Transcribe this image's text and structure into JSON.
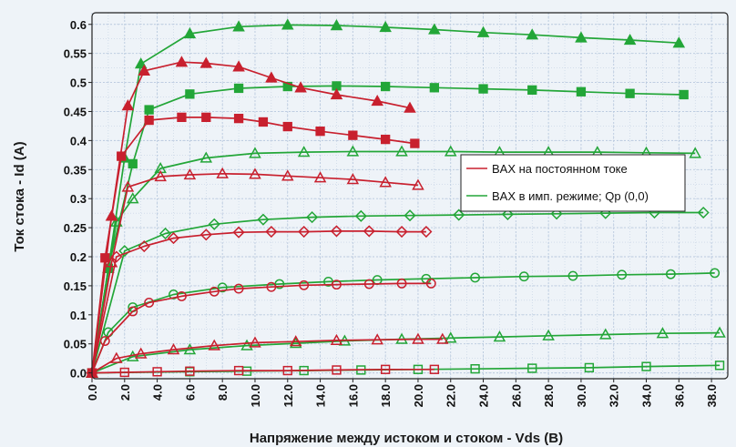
{
  "chart_data": {
    "type": "line",
    "title": "",
    "xlabel": "Напряжение между истоком и стоком - Vds (В)",
    "ylabel": "Ток стока - Id (A)",
    "xlim": [
      0,
      39
    ],
    "ylim": [
      -0.01,
      0.62
    ],
    "x_ticks": [
      "0.0",
      "2.0",
      "4.0",
      "6.0",
      "8.0",
      "10.0",
      "12.0",
      "14.0",
      "16.0",
      "18.0",
      "20.0",
      "22.0",
      "24.0",
      "26.0",
      "28.0",
      "30.0",
      "32.0",
      "34.0",
      "36.0",
      "38.0"
    ],
    "x_tick_values": [
      0,
      2,
      4,
      6,
      8,
      10,
      12,
      14,
      16,
      18,
      20,
      22,
      24,
      26,
      28,
      30,
      32,
      34,
      36,
      38
    ],
    "y_ticks": [
      "0.0",
      "0.05",
      "0.1",
      "0.15",
      "0.2",
      "0.25",
      "0.3",
      "0.35",
      "0.4",
      "0.45",
      "0.5",
      "0.55",
      "0.6"
    ],
    "y_tick_values": [
      0,
      0.05,
      0.1,
      0.15,
      0.2,
      0.25,
      0.3,
      0.35,
      0.4,
      0.45,
      0.5,
      0.55,
      0.6
    ],
    "grid": true,
    "legend_position": "right",
    "legend": [
      {
        "label": "BAX на постоянном токе",
        "color": "#c8202e"
      },
      {
        "label": "BAX в имп. режиме; Qp (0,0)",
        "color": "#23a638"
      }
    ],
    "colors": {
      "dc": "#c8202e",
      "pulsed": "#23a638",
      "background": "#eef3f8",
      "grid": "#b9c9de"
    },
    "series": [
      {
        "group": "dc",
        "marker": "triangle-filled",
        "x": [
          0,
          1.2,
          2.2,
          3.2,
          5.5,
          7,
          9,
          11,
          12.8,
          15,
          17.5,
          19.5
        ],
        "y": [
          0,
          0.27,
          0.46,
          0.52,
          0.535,
          0.533,
          0.527,
          0.508,
          0.491,
          0.479,
          0.468,
          0.456
        ]
      },
      {
        "group": "dc",
        "marker": "square-filled",
        "x": [
          0,
          0.8,
          1.8,
          3.5,
          5.5,
          7,
          9,
          10.5,
          12,
          14,
          16,
          18,
          19.8
        ],
        "y": [
          0,
          0.198,
          0.373,
          0.435,
          0.44,
          0.44,
          0.438,
          0.432,
          0.424,
          0.416,
          0.409,
          0.402,
          0.395
        ]
      },
      {
        "group": "dc",
        "marker": "triangle-open",
        "x": [
          0,
          1.2,
          2.2,
          4.2,
          6,
          8,
          10,
          12,
          14,
          16,
          18,
          20
        ],
        "y": [
          0,
          0.19,
          0.32,
          0.338,
          0.341,
          0.343,
          0.342,
          0.339,
          0.336,
          0.333,
          0.328,
          0.323
        ]
      },
      {
        "group": "dc",
        "marker": "diamond-open",
        "x": [
          0,
          1.5,
          3.2,
          5,
          7,
          9,
          11,
          13,
          15,
          17,
          19,
          20.5
        ],
        "y": [
          0,
          0.2,
          0.218,
          0.232,
          0.238,
          0.242,
          0.243,
          0.243,
          0.244,
          0.244,
          0.243,
          0.243
        ]
      },
      {
        "group": "dc",
        "marker": "circle-open",
        "x": [
          0,
          0.8,
          2.5,
          3.5,
          5.5,
          7.5,
          9,
          11,
          13,
          15,
          17,
          19,
          20.8
        ],
        "y": [
          0,
          0.055,
          0.106,
          0.121,
          0.132,
          0.14,
          0.145,
          0.148,
          0.151,
          0.152,
          0.153,
          0.154,
          0.154
        ]
      },
      {
        "group": "dc",
        "marker": "triangle-open",
        "x": [
          0,
          1.5,
          3,
          5,
          7.5,
          10,
          12.5,
          15,
          17.5,
          20,
          21.5
        ],
        "y": [
          0,
          0.025,
          0.033,
          0.04,
          0.047,
          0.052,
          0.054,
          0.056,
          0.057,
          0.058,
          0.058
        ]
      },
      {
        "group": "dc",
        "marker": "square-open",
        "x": [
          0,
          2,
          4,
          6,
          9,
          12,
          15,
          18,
          21
        ],
        "y": [
          0,
          0.001,
          0.002,
          0.003,
          0.004,
          0.004,
          0.005,
          0.006,
          0.006
        ]
      },
      {
        "group": "pulsed",
        "marker": "triangle-filled",
        "x": [
          0,
          1,
          2,
          3,
          6,
          9,
          12,
          15,
          18,
          21,
          24,
          27,
          30,
          33,
          36
        ],
        "y": [
          0,
          0.18,
          0.37,
          0.532,
          0.584,
          0.596,
          0.599,
          0.598,
          0.595,
          0.591,
          0.586,
          0.582,
          0.577,
          0.573,
          0.568
        ]
      },
      {
        "group": "pulsed",
        "marker": "square-filled",
        "x": [
          0,
          1,
          2.5,
          3.5,
          6,
          9,
          12,
          15,
          18,
          21,
          24,
          27,
          30,
          33,
          36.3
        ],
        "y": [
          0,
          0.18,
          0.36,
          0.453,
          0.48,
          0.49,
          0.493,
          0.494,
          0.493,
          0.491,
          0.489,
          0.487,
          0.484,
          0.481,
          0.479
        ]
      },
      {
        "group": "pulsed",
        "marker": "triangle-open",
        "x": [
          0,
          1.5,
          2.5,
          4.2,
          7,
          10,
          13,
          16,
          19,
          22,
          25,
          28,
          31,
          34,
          37
        ],
        "y": [
          0,
          0.26,
          0.3,
          0.352,
          0.37,
          0.378,
          0.38,
          0.381,
          0.381,
          0.381,
          0.38,
          0.38,
          0.38,
          0.379,
          0.378
        ]
      },
      {
        "group": "pulsed",
        "marker": "diamond-open",
        "x": [
          0,
          2,
          4.5,
          7.5,
          10.5,
          13.5,
          16.5,
          19.5,
          22.5,
          25.5,
          28.5,
          31.5,
          34.5,
          37.5
        ],
        "y": [
          0,
          0.21,
          0.24,
          0.256,
          0.264,
          0.268,
          0.27,
          0.271,
          0.272,
          0.273,
          0.274,
          0.275,
          0.276,
          0.276
        ]
      },
      {
        "group": "pulsed",
        "marker": "circle-open",
        "x": [
          0,
          1,
          2.5,
          5,
          8,
          11.5,
          14.5,
          17.5,
          20.5,
          23.5,
          26.5,
          29.5,
          32.5,
          35.5,
          38.2
        ],
        "y": [
          0,
          0.07,
          0.113,
          0.135,
          0.147,
          0.153,
          0.157,
          0.16,
          0.162,
          0.164,
          0.166,
          0.167,
          0.169,
          0.17,
          0.172
        ]
      },
      {
        "group": "pulsed",
        "marker": "triangle-open",
        "x": [
          0,
          2.5,
          6,
          9.5,
          12.5,
          15.5,
          19,
          22,
          25,
          28,
          31.5,
          35,
          38.5
        ],
        "y": [
          0,
          0.028,
          0.04,
          0.047,
          0.051,
          0.055,
          0.058,
          0.06,
          0.062,
          0.064,
          0.066,
          0.068,
          0.069
        ]
      },
      {
        "group": "pulsed",
        "marker": "square-open",
        "x": [
          0,
          6,
          9.5,
          13,
          16.5,
          20,
          23.5,
          27,
          30.5,
          34,
          38.5
        ],
        "y": [
          0,
          0.002,
          0.003,
          0.004,
          0.005,
          0.006,
          0.007,
          0.008,
          0.009,
          0.011,
          0.013
        ]
      }
    ]
  }
}
